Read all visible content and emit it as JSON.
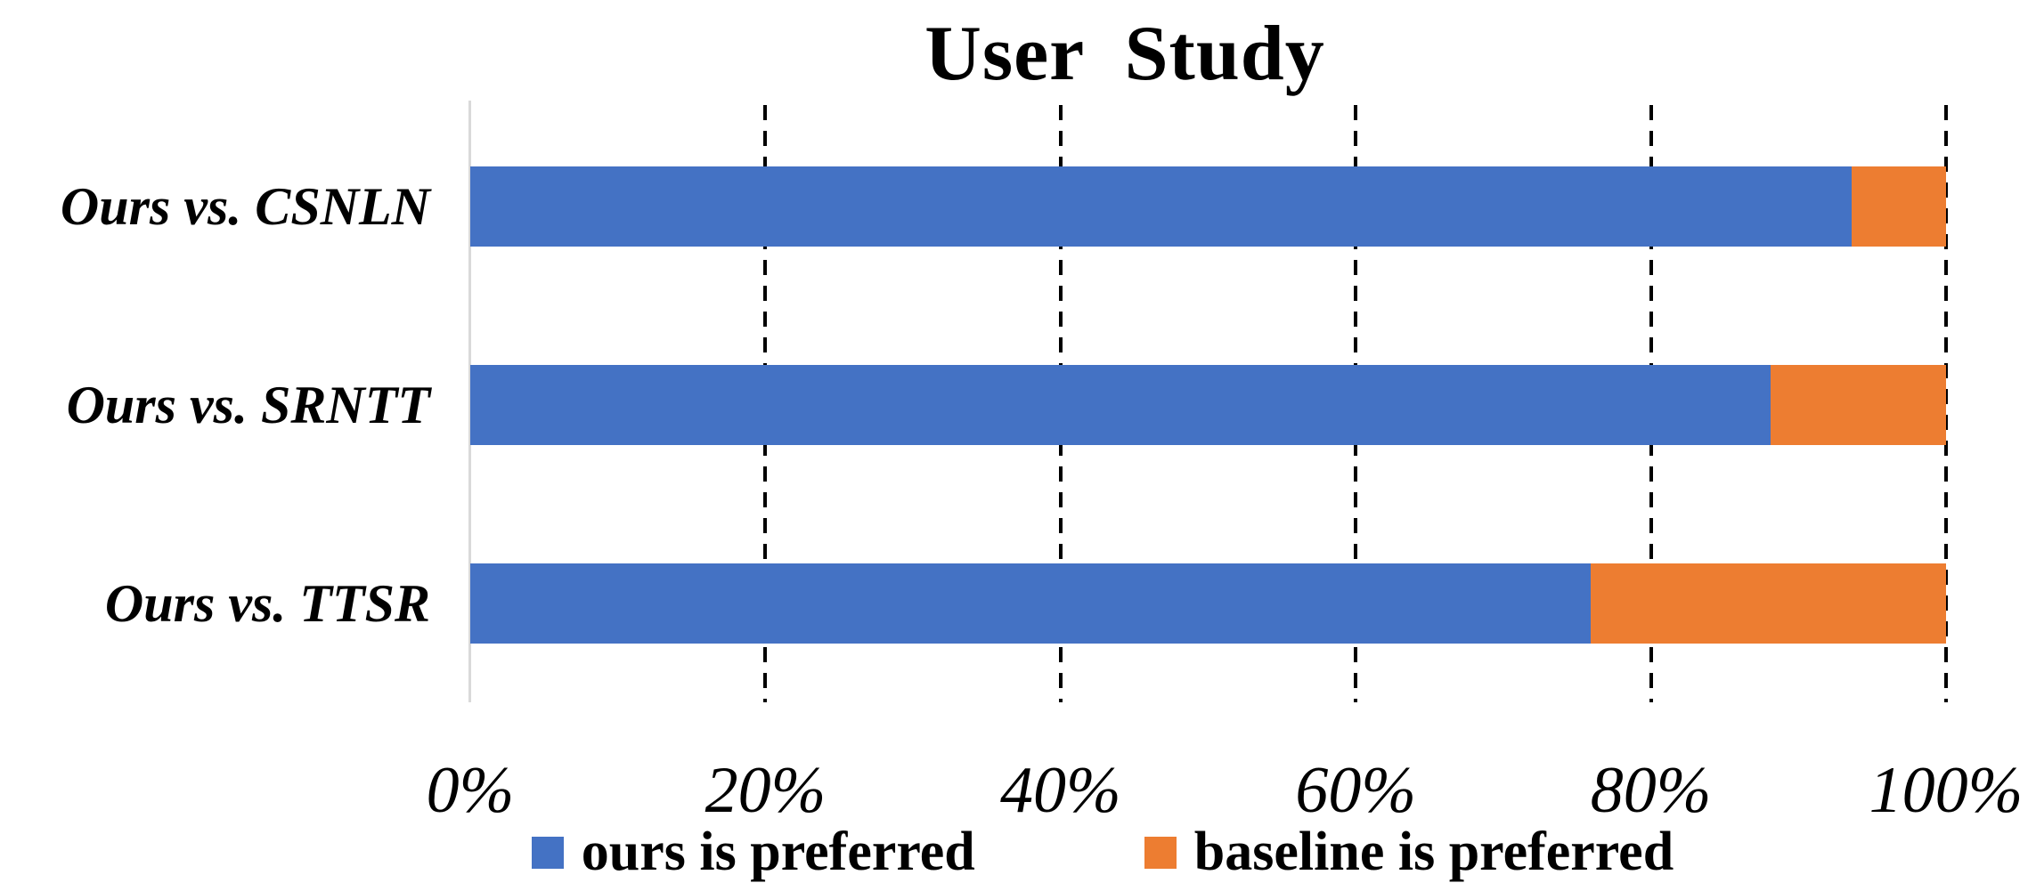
{
  "title": "User  Study",
  "chart_data": {
    "type": "bar",
    "orientation": "horizontal",
    "stacked": true,
    "stacked_100_percent": true,
    "title": "User  Study",
    "categories": [
      "Ours vs. CSNLN",
      "Ours vs. SRNTT",
      "Ours vs. TTSR"
    ],
    "series": [
      {
        "name": "ours is preferred",
        "color": "#4472C4",
        "values": [
          93.6,
          88.1,
          75.9
        ]
      },
      {
        "name": "baseline is preferred",
        "color": "#ED7D31",
        "values": [
          6.4,
          11.9,
          24.1
        ]
      }
    ],
    "x_axis": {
      "min": 0,
      "max": 100,
      "tick_labels": [
        "0%",
        "20%",
        "40%",
        "60%",
        "80%",
        "100%"
      ],
      "gridlines": "dashed-vertical"
    },
    "legend_position": "bottom",
    "grid": true
  },
  "colors": {
    "ours_blue": "#4472C4",
    "baseline_orange": "#ED7D31",
    "axis_line_gray": "#D9D9D9",
    "text": "#000000",
    "background": "#FFFFFF"
  }
}
